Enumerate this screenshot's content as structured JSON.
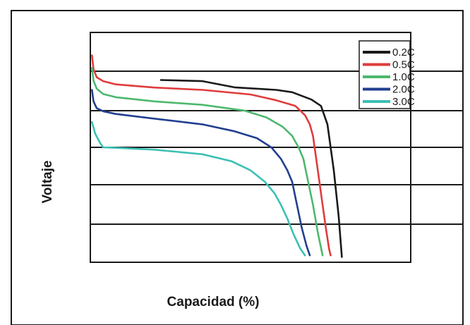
{
  "chart_data": {
    "type": "line",
    "title": "",
    "xlabel": "Capacidad (%)",
    "ylabel": "Voltaje",
    "xlim": [
      0,
      100
    ],
    "ylim": [
      0,
      100
    ],
    "grid": true,
    "legend_position": "top-right",
    "series": [
      {
        "name": "0.2C",
        "color": "#1a1a1a",
        "x": [
          22,
          35,
          45,
          58,
          63,
          69,
          72,
          74,
          76,
          77.5,
          78.5
        ],
        "y": [
          79.3,
          78.8,
          76.1,
          75.0,
          74.0,
          70.8,
          68.0,
          60.0,
          40.0,
          20.0,
          2.3
        ]
      },
      {
        "name": "0.5C",
        "color": "#e03c3c",
        "x": [
          0.5,
          1.0,
          2.0,
          4.0,
          8.0,
          20,
          35,
          50,
          58,
          64,
          67,
          68.5,
          69.5,
          70.5,
          71.5,
          72.5,
          73.5,
          74.5,
          75
        ],
        "y": [
          90.0,
          84.0,
          80.5,
          78.8,
          77.4,
          76.0,
          75.0,
          73.0,
          70.5,
          68.0,
          64.0,
          60.0,
          55.0,
          45.0,
          35.0,
          25.0,
          15.0,
          6.0,
          3.0
        ]
      },
      {
        "name": "1.0C",
        "color": "#4db86e",
        "x": [
          0.5,
          1.0,
          2.0,
          4.0,
          8.0,
          20,
          35,
          48,
          55,
          60,
          63,
          65,
          66.5,
          68,
          69.5,
          71,
          72.5
        ],
        "y": [
          84.5,
          79.0,
          75.5,
          73.2,
          71.8,
          70.0,
          68.5,
          66.0,
          63.0,
          59.0,
          55.0,
          50.0,
          45.0,
          35.0,
          25.0,
          13.0,
          3.0
        ]
      },
      {
        "name": "2.0C",
        "color": "#213f8f",
        "x": [
          0.5,
          1.0,
          2.0,
          4.0,
          8.0,
          20,
          35,
          45,
          52,
          56.5,
          59.5,
          61.5,
          63,
          64.5,
          66,
          67.5,
          68.5
        ],
        "y": [
          75.0,
          70.0,
          67.0,
          65.7,
          64.5,
          62.5,
          60.0,
          57.0,
          54.0,
          50.0,
          45.0,
          40.0,
          35.0,
          25.0,
          15.0,
          7.0,
          3.0
        ]
      },
      {
        "name": "3.0C",
        "color": "#3cc0b4",
        "x": [
          0.5,
          1.5,
          3.0,
          4.0,
          8,
          20,
          35,
          44,
          50,
          54.5,
          57.5,
          59.5,
          61.5,
          63.5,
          65.5,
          67
        ],
        "y": [
          61.0,
          56.0,
          52.0,
          50.0,
          49.8,
          49.0,
          47.0,
          44.0,
          40.0,
          35.0,
          30.0,
          25.0,
          19.0,
          12.0,
          6.0,
          3.0
        ]
      }
    ]
  }
}
